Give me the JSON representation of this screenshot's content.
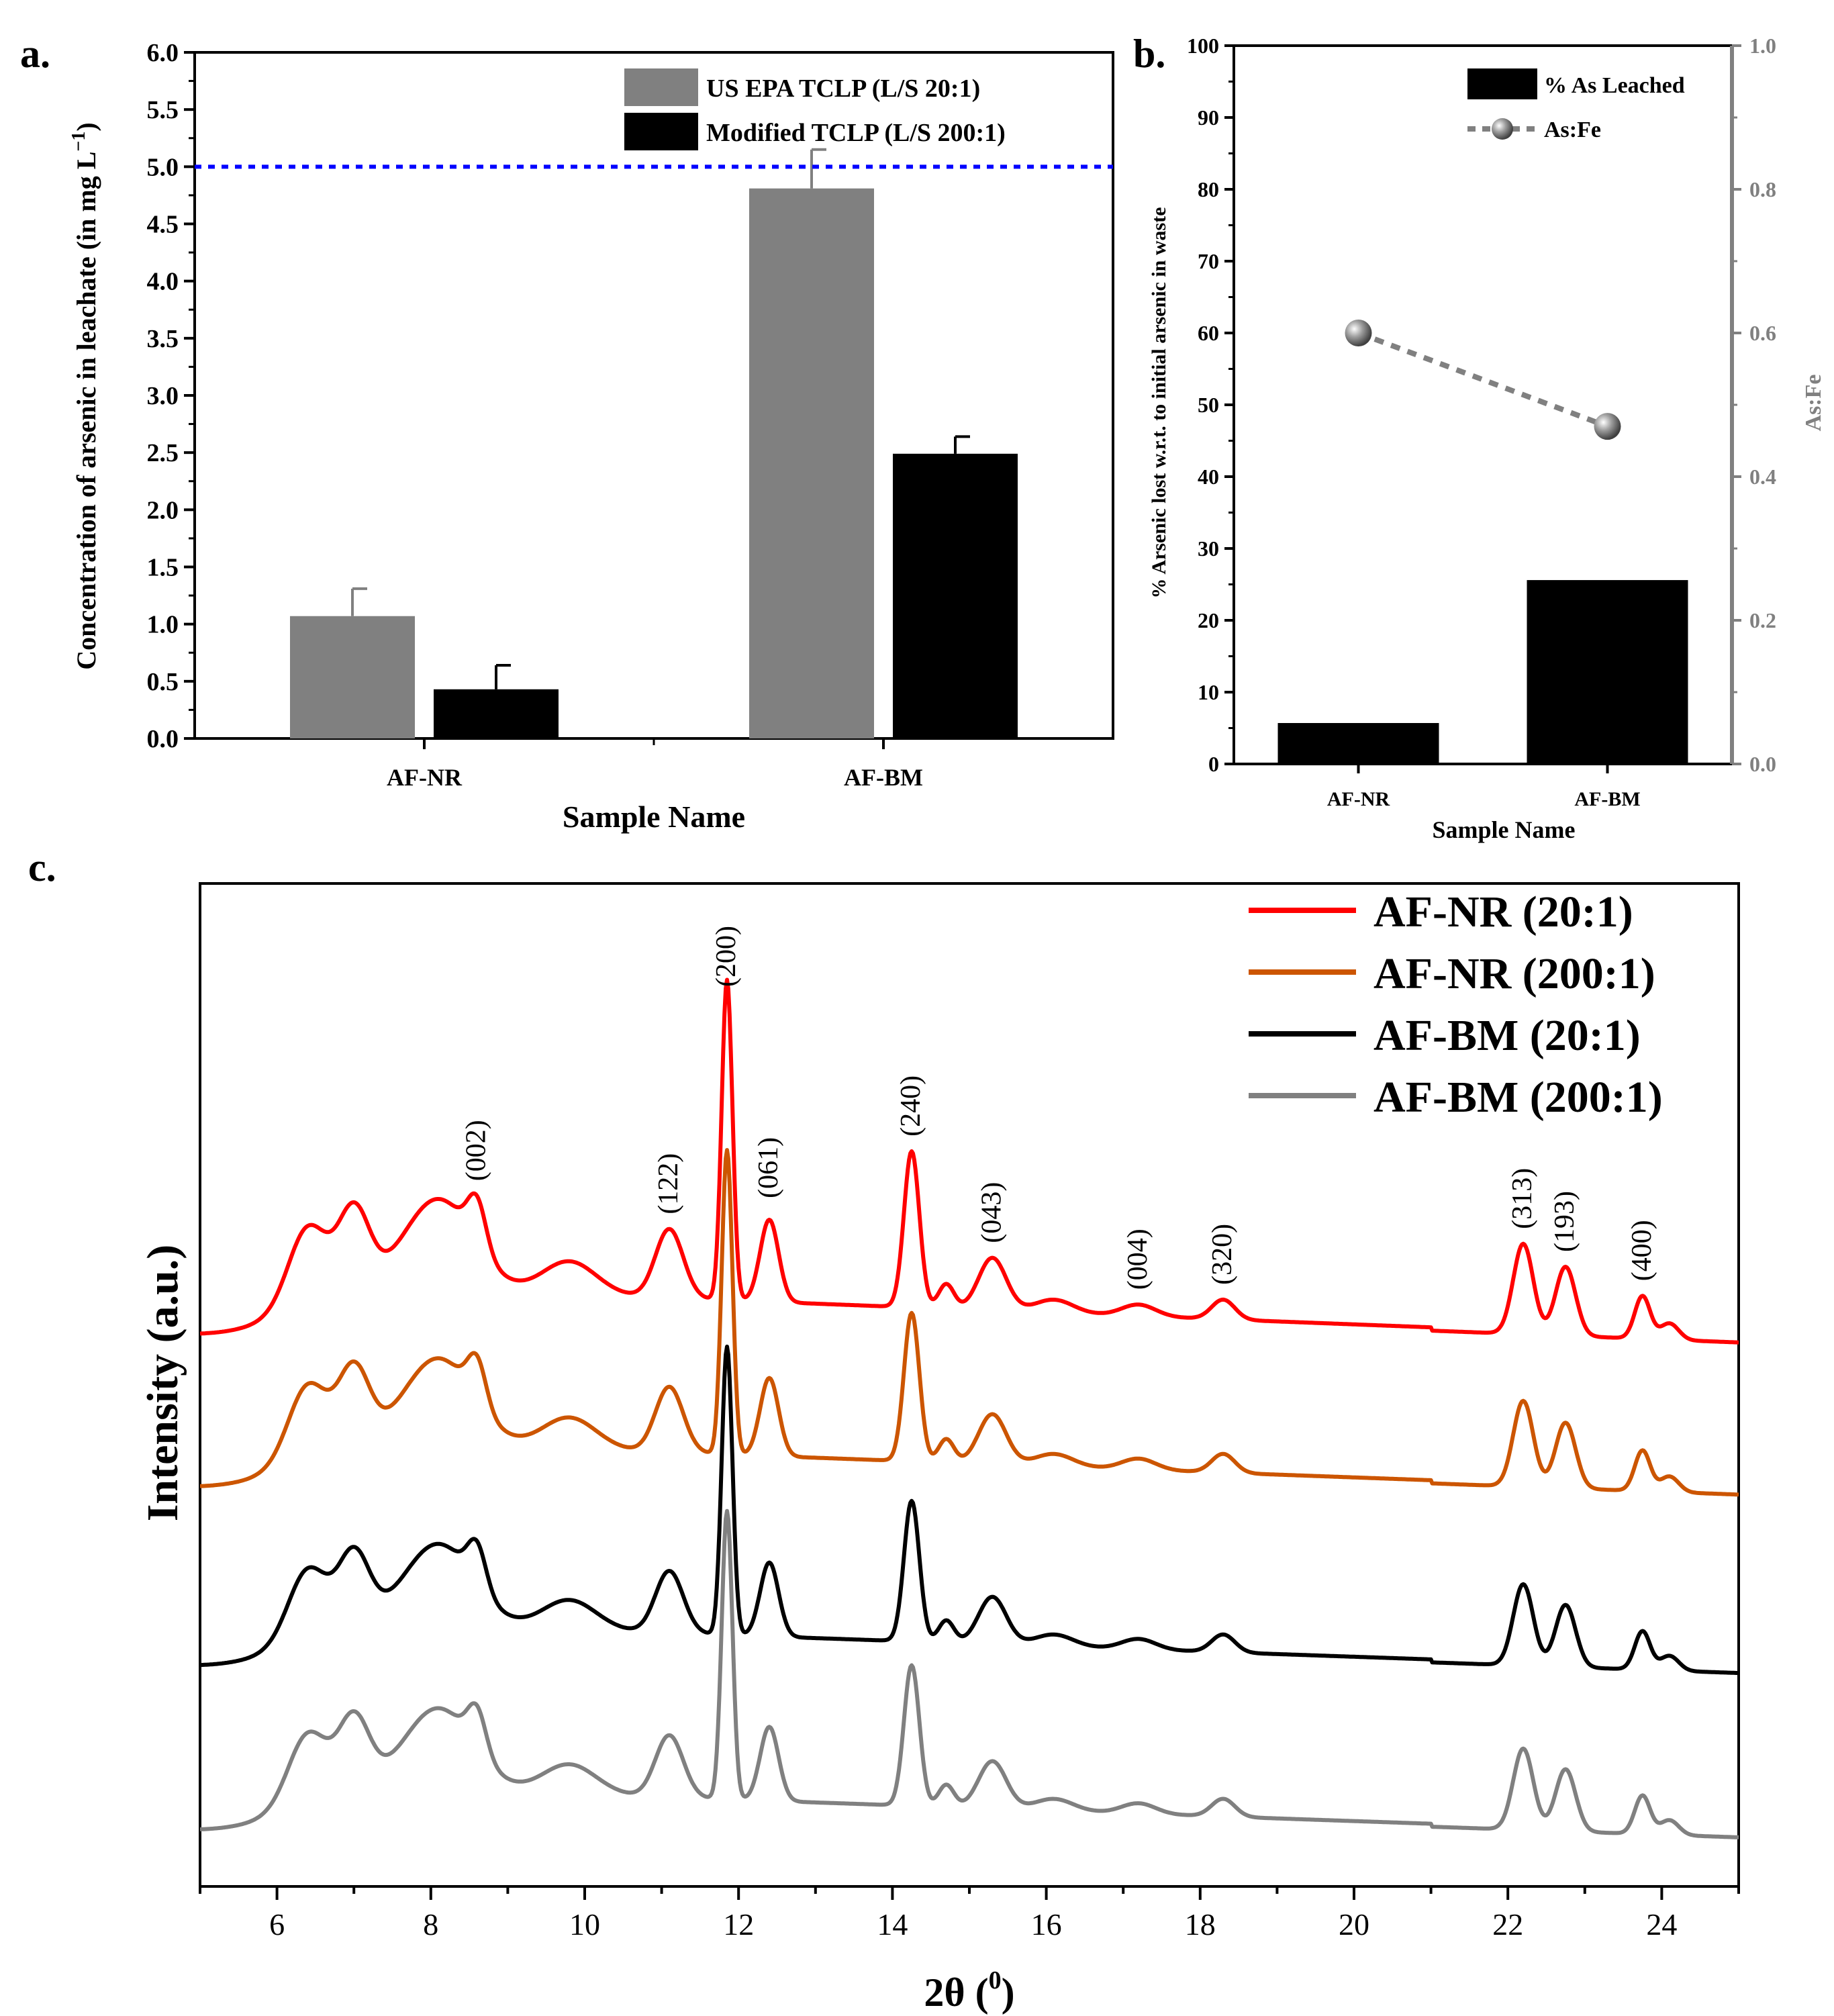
{
  "chart_data": [
    {
      "panel": "a.",
      "type": "bar",
      "xlabel": "Sample Name",
      "ylabel": "Concentration of arsenic in leachate (in mg L",
      "ylabel_sup": "−1",
      "ylabel_end": ")",
      "ylim": [
        0,
        6
      ],
      "yticks": [
        "0.0",
        "0.5",
        "1.0",
        "1.5",
        "2.0",
        "2.5",
        "3.0",
        "3.5",
        "4.0",
        "4.5",
        "5.0",
        "5.5",
        "6.0"
      ],
      "categories": [
        "AF-NR",
        "AF-BM"
      ],
      "series": [
        {
          "name": "US EPA TCLP (L/S 20:1)",
          "values": [
            1.07,
            4.81
          ],
          "errors": [
            0.24,
            0.34
          ],
          "color": "#808080"
        },
        {
          "name": "Modified TCLP (L/S 200:1)",
          "values": [
            0.43,
            2.49
          ],
          "errors": [
            0.21,
            0.15
          ],
          "color": "#000000"
        }
      ],
      "reference_line": {
        "value": 5.0,
        "color": "#0000ff",
        "style": "dotted"
      },
      "legend": "top-right"
    },
    {
      "panel": "b.",
      "type": "bar",
      "xlabel": "Sample Name",
      "ylabel": "% Arsenic lost w.r.t. to initial arsenic in waste",
      "y2label": "As:Fe",
      "ylim": [
        0,
        100
      ],
      "y2lim": [
        0,
        1.0
      ],
      "yticks": [
        "0",
        "10",
        "20",
        "30",
        "40",
        "50",
        "60",
        "70",
        "80",
        "90",
        "100"
      ],
      "y2ticks": [
        "0.0",
        "0.2",
        "0.4",
        "0.6",
        "0.8",
        "1.0"
      ],
      "categories": [
        "AF-NR",
        "AF-BM"
      ],
      "series": [
        {
          "name": "% As Leached",
          "values": [
            5.7,
            25.6
          ],
          "axis": "left",
          "color": "#000000"
        },
        {
          "name": "As:Fe",
          "values": [
            0.6,
            0.47
          ],
          "axis": "right",
          "type": "line",
          "color": "#808080"
        }
      ],
      "legend": "top-right"
    },
    {
      "panel": "c.",
      "type": "line",
      "xlabel": "2θ (",
      "xlabel_sup": "0",
      "xlabel_end": ")",
      "ylabel": "Intensity (a.u.)",
      "xlim": [
        5,
        25
      ],
      "xticks": [
        "6",
        "8",
        "10",
        "12",
        "14",
        "16",
        "18",
        "20",
        "22",
        "24"
      ],
      "peaks": [
        {
          "x": 8.6,
          "label": "(002)"
        },
        {
          "x": 11.1,
          "label": "(122)"
        },
        {
          "x": 11.85,
          "label": "(200)"
        },
        {
          "x": 12.4,
          "label": "(061)"
        },
        {
          "x": 14.25,
          "label": "(240)"
        },
        {
          "x": 15.3,
          "label": "(043)"
        },
        {
          "x": 17.2,
          "label": "(004)"
        },
        {
          "x": 18.3,
          "label": "(320)"
        },
        {
          "x": 22.2,
          "label": "(313)"
        },
        {
          "x": 22.75,
          "label": "(193)"
        },
        {
          "x": 23.75,
          "label": "(400)"
        }
      ],
      "series": [
        {
          "name": "AF-NR (20:1)",
          "color": "#ff0000",
          "offset": 3.0,
          "scale": 1.0
        },
        {
          "name": "AF-NR (200:1)",
          "color": "#cc5500",
          "offset": 2.08,
          "scale": 0.95
        },
        {
          "name": "AF-BM (20:1)",
          "color": "#000000",
          "offset": 1.0,
          "scale": 0.9
        },
        {
          "name": "AF-BM (200:1)",
          "color": "#808080",
          "offset": 0.0,
          "scale": 0.9
        }
      ],
      "legend": "top-right"
    }
  ]
}
